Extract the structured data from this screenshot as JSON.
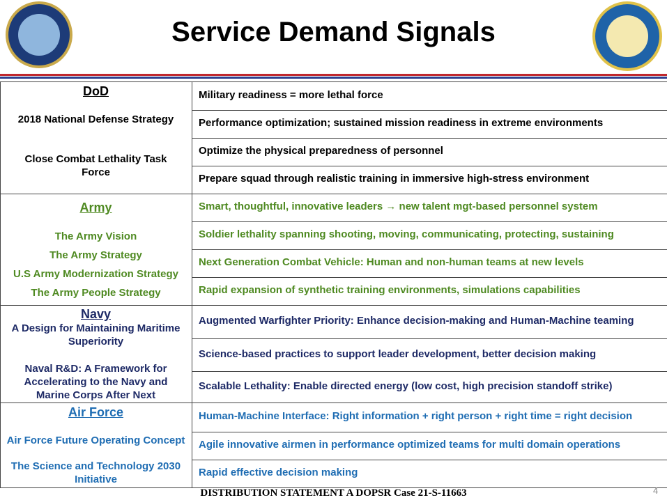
{
  "header": {
    "title": "Service Demand Signals"
  },
  "sections": [
    {
      "heading": "DoD",
      "sources": [
        "2018 National Defense Strategy",
        "Close Combat Lethality Task Force"
      ],
      "signals": [
        "Military readiness = more lethal force",
        "Performance optimization; sustained mission readiness in extreme environments",
        "Optimize the physical preparedness of personnel",
        "Prepare squad through realistic training in immersive high-stress environment"
      ]
    },
    {
      "heading": "Army",
      "sources": [
        "The Army Vision",
        "The Army Strategy",
        "U.S Army Modernization Strategy",
        "The Army People Strategy"
      ],
      "signals": [
        "Smart, thoughtful, innovative leaders → new talent mgt-based personnel system",
        "Soldier lethality spanning shooting, moving, communicating, protecting, sustaining",
        "Next Generation Combat Vehicle: Human and non-human teams at new levels",
        "Rapid expansion of synthetic training environments, simulations capabilities"
      ]
    },
    {
      "heading": "Navy",
      "sources": [
        "A Design for Maintaining Maritime Superiority",
        "Naval R&D: A Framework for Accelerating to the Navy and Marine Corps After Next"
      ],
      "signals": [
        "Augmented Warfighter Priority: Enhance decision-making and Human-Machine teaming",
        "Science-based practices to support leader development, better decision making",
        "Scalable Lethality: Enable directed energy (low cost, high precision standoff strike)"
      ]
    },
    {
      "heading": "Air Force",
      "sources": [
        "Air Force Future Operating Concept",
        "The Science and Technology 2030 Initiative"
      ],
      "signals": [
        "Human-Machine Interface: Right information + right person + right time = right decision",
        "Agile innovative airmen in performance optimized teams for multi domain operations",
        "Rapid effective decision making"
      ]
    }
  ],
  "footer": {
    "statement": "DISTRIBUTION STATEMENT A DOPSR Case 21-S-11663",
    "page": "4"
  }
}
